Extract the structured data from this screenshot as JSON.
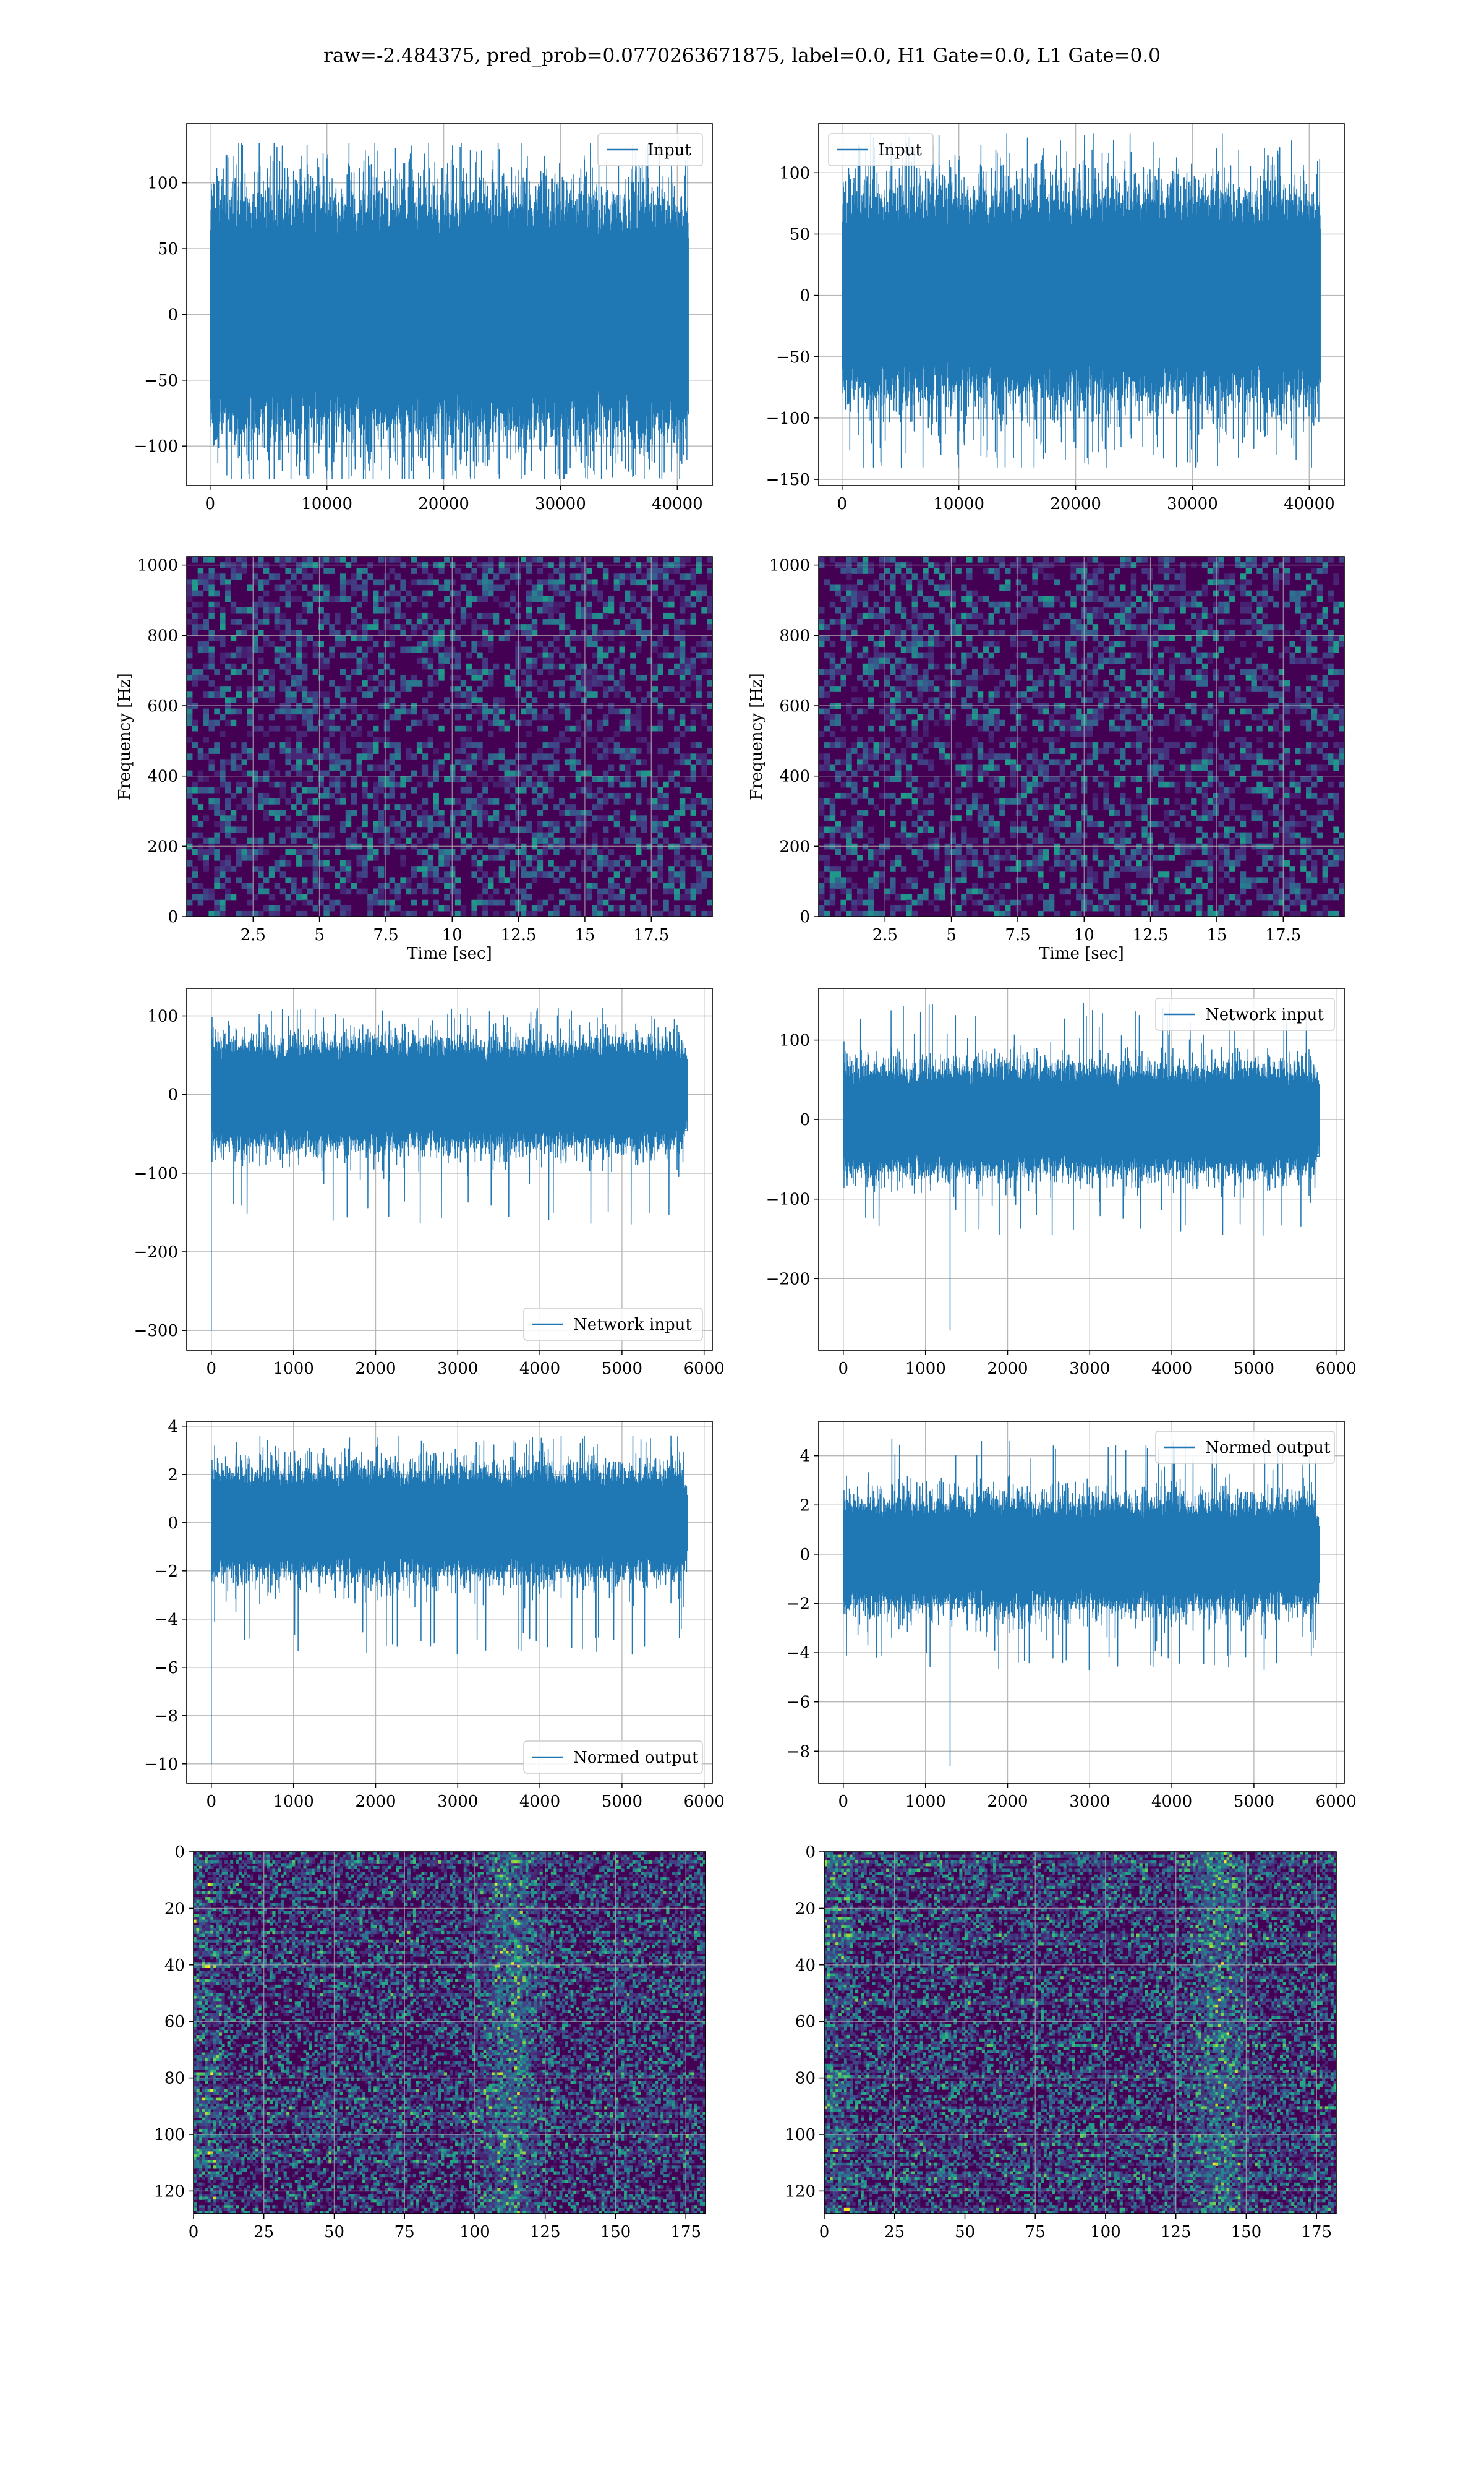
{
  "figure": {
    "suptitle": "raw=-2.484375, pred_prob=0.0770263671875, label=0.0, H1 Gate=0.0, L1 Gate=0.0"
  },
  "colors": {
    "line": "#1f77b4",
    "grid": "#b0b0b0",
    "viridis_low": "#440154",
    "viridis_mid": "#21918c",
    "viridis_high": "#fde725"
  },
  "chart_data": [
    {
      "id": "input-h1",
      "type": "line",
      "legend": "Input",
      "legend_loc": "top-right",
      "xlim": [
        -2000,
        43000
      ],
      "ylim": [
        -130,
        145
      ],
      "xticks": [
        0,
        10000,
        20000,
        30000,
        40000
      ],
      "yticks": [
        -100,
        -50,
        0,
        50,
        100
      ],
      "signal": {
        "n": 40960,
        "envelope": 75,
        "max": 130,
        "min": -125,
        "spike_index": null
      }
    },
    {
      "id": "input-l1",
      "type": "line",
      "legend": "Input",
      "legend_loc": "top-left",
      "xlim": [
        -2000,
        43000
      ],
      "ylim": [
        -155,
        140
      ],
      "xticks": [
        0,
        10000,
        20000,
        30000,
        40000
      ],
      "yticks": [
        -150,
        -100,
        -50,
        0,
        50,
        100
      ],
      "signal": {
        "n": 40960,
        "envelope": 70,
        "max": 132,
        "min": -140,
        "spike_index": null
      }
    },
    {
      "id": "spec-h1",
      "type": "heatmap",
      "xlabel": "Time [sec]",
      "ylabel": "Frequency [Hz]",
      "xlim": [
        0,
        19.8
      ],
      "ylim": [
        0,
        1024
      ],
      "xticks": [
        2.5,
        5.0,
        7.5,
        10.0,
        12.5,
        15.0,
        17.5
      ],
      "yticks": [
        0,
        200,
        400,
        600,
        800,
        1000
      ],
      "grid": {
        "cols": 96,
        "rows": 64,
        "seed": 11
      }
    },
    {
      "id": "spec-l1",
      "type": "heatmap",
      "xlabel": "Time [sec]",
      "ylabel": "Frequency [Hz]",
      "xlim": [
        0,
        19.8
      ],
      "ylim": [
        0,
        1024
      ],
      "xticks": [
        2.5,
        5.0,
        7.5,
        10.0,
        12.5,
        15.0,
        17.5
      ],
      "yticks": [
        0,
        200,
        400,
        600,
        800,
        1000
      ],
      "grid": {
        "cols": 96,
        "rows": 64,
        "seed": 23
      }
    },
    {
      "id": "network-h1",
      "type": "line",
      "legend": "Network input",
      "legend_loc": "bottom-right",
      "xlim": [
        -300,
        6100
      ],
      "ylim": [
        -325,
        135
      ],
      "xticks": [
        0,
        1000,
        2000,
        3000,
        4000,
        5000,
        6000
      ],
      "yticks": [
        -300,
        -200,
        -100,
        0,
        100
      ],
      "signal": {
        "n": 5800,
        "envelope": 55,
        "max": 110,
        "min": -300,
        "spike_index": 0,
        "spike_value": -300
      }
    },
    {
      "id": "network-l1",
      "type": "line",
      "legend": "Network input",
      "legend_loc": "top-right",
      "xlim": [
        -300,
        6100
      ],
      "ylim": [
        -290,
        165
      ],
      "xticks": [
        0,
        1000,
        2000,
        3000,
        4000,
        5000,
        6000
      ],
      "yticks": [
        -200,
        -100,
        0,
        100
      ],
      "signal": {
        "n": 5800,
        "envelope": 55,
        "max": 148,
        "min": -265,
        "spike_index": 1300,
        "spike_value": -265
      }
    },
    {
      "id": "normed-h1",
      "type": "line",
      "legend": "Normed output",
      "legend_loc": "bottom-right",
      "xlim": [
        -300,
        6100
      ],
      "ylim": [
        -10.8,
        4.2
      ],
      "xticks": [
        0,
        1000,
        2000,
        3000,
        4000,
        5000,
        6000
      ],
      "yticks": [
        -10,
        -8,
        -6,
        -4,
        -2,
        0,
        2,
        4
      ],
      "signal": {
        "n": 5800,
        "envelope": 1.8,
        "max": 3.6,
        "min": -10.0,
        "spike_index": 0,
        "spike_value": -10.0
      }
    },
    {
      "id": "normed-l1",
      "type": "line",
      "legend": "Normed output",
      "legend_loc": "top-right",
      "xlim": [
        -300,
        6100
      ],
      "ylim": [
        -9.3,
        5.4
      ],
      "xticks": [
        0,
        1000,
        2000,
        3000,
        4000,
        5000,
        6000
      ],
      "yticks": [
        -8,
        -6,
        -4,
        -2,
        0,
        2,
        4
      ],
      "signal": {
        "n": 5800,
        "envelope": 1.8,
        "max": 4.7,
        "min": -8.6,
        "spike_index": 1300,
        "spike_value": -8.6
      }
    },
    {
      "id": "features-h1",
      "type": "heatmap",
      "y_inverted": true,
      "xlim": [
        0,
        182
      ],
      "ylim": [
        128,
        0
      ],
      "xticks": [
        0,
        25,
        50,
        75,
        100,
        125,
        150,
        175
      ],
      "yticks": [
        0,
        20,
        40,
        60,
        80,
        100,
        120
      ],
      "grid": {
        "cols": 182,
        "rows": 128,
        "seed": 37
      }
    },
    {
      "id": "features-l1",
      "type": "heatmap",
      "y_inverted": true,
      "xlim": [
        0,
        182
      ],
      "ylim": [
        128,
        0
      ],
      "xticks": [
        0,
        25,
        50,
        75,
        100,
        125,
        150,
        175
      ],
      "yticks": [
        0,
        20,
        40,
        60,
        80,
        100,
        120
      ],
      "grid": {
        "cols": 182,
        "rows": 128,
        "seed": 53
      }
    }
  ]
}
